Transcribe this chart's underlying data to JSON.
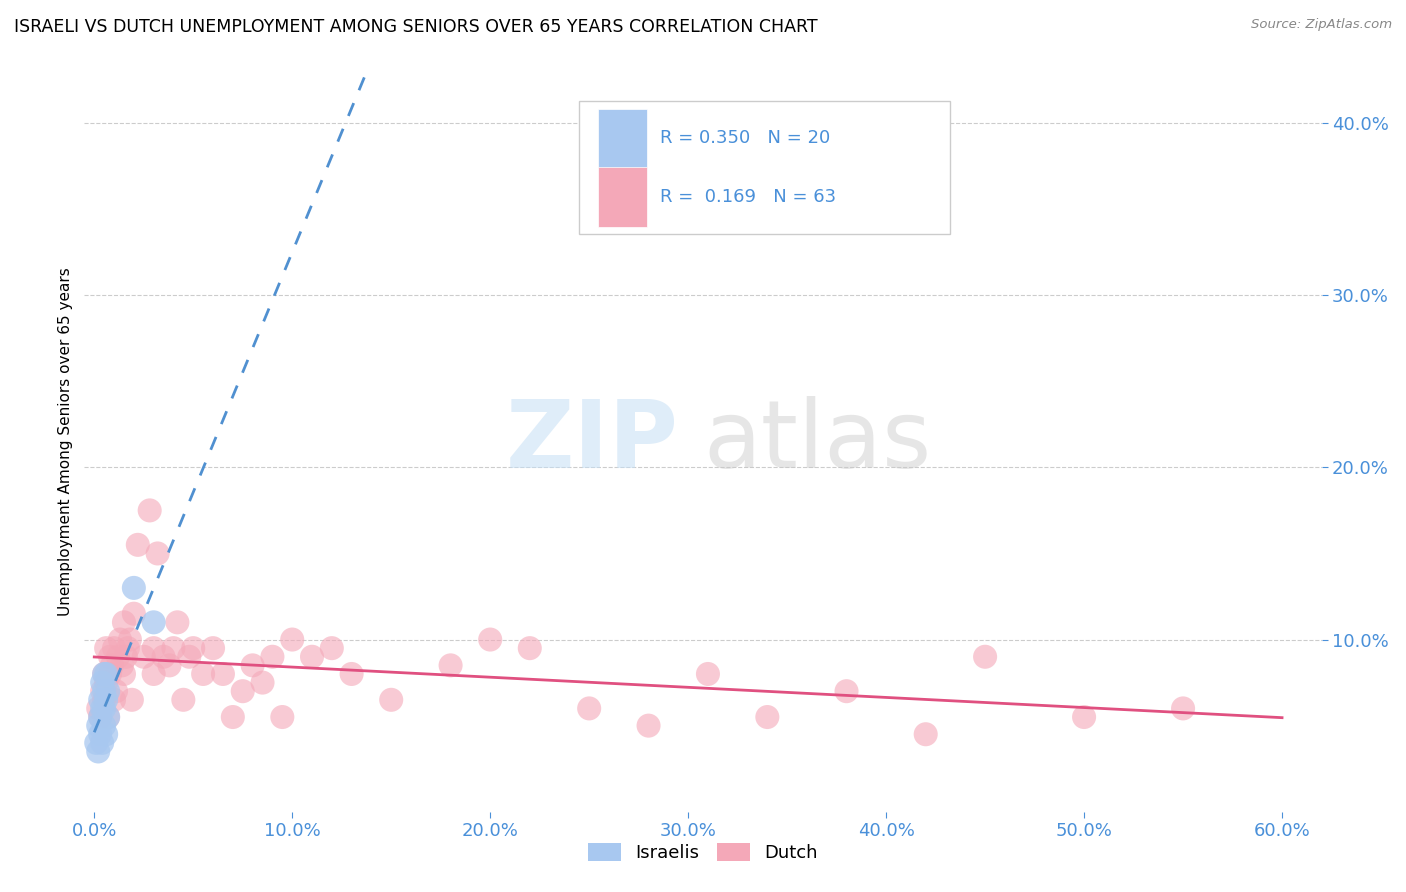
{
  "title": "ISRAELI VS DUTCH UNEMPLOYMENT AMONG SENIORS OVER 65 YEARS CORRELATION CHART",
  "source": "Source: ZipAtlas.com",
  "ylabel": "Unemployment Among Seniors over 65 years",
  "israelis_R": 0.35,
  "israelis_N": 20,
  "dutch_R": 0.169,
  "dutch_N": 63,
  "israelis_color": "#a8c8f0",
  "dutch_color": "#f4a8b8",
  "trendline_israeli_color": "#5090d0",
  "trendline_dutch_color": "#e05080",
  "background_color": "#ffffff",
  "grid_color": "#cccccc",
  "israelis_x": [
    0.001,
    0.002,
    0.002,
    0.003,
    0.003,
    0.003,
    0.004,
    0.004,
    0.004,
    0.005,
    0.005,
    0.005,
    0.005,
    0.006,
    0.006,
    0.006,
    0.007,
    0.007,
    0.02,
    0.03
  ],
  "israelis_y": [
    0.04,
    0.035,
    0.05,
    0.045,
    0.055,
    0.065,
    0.04,
    0.06,
    0.075,
    0.05,
    0.06,
    0.07,
    0.08,
    0.045,
    0.065,
    0.08,
    0.055,
    0.07,
    0.13,
    0.11
  ],
  "dutch_x": [
    0.002,
    0.003,
    0.004,
    0.005,
    0.005,
    0.006,
    0.006,
    0.007,
    0.008,
    0.008,
    0.009,
    0.01,
    0.01,
    0.011,
    0.012,
    0.013,
    0.014,
    0.015,
    0.015,
    0.016,
    0.017,
    0.018,
    0.019,
    0.02,
    0.022,
    0.025,
    0.028,
    0.03,
    0.03,
    0.032,
    0.035,
    0.038,
    0.04,
    0.042,
    0.045,
    0.048,
    0.05,
    0.055,
    0.06,
    0.065,
    0.07,
    0.075,
    0.08,
    0.085,
    0.09,
    0.095,
    0.1,
    0.11,
    0.12,
    0.13,
    0.15,
    0.18,
    0.2,
    0.22,
    0.25,
    0.28,
    0.31,
    0.34,
    0.38,
    0.42,
    0.45,
    0.5,
    0.55
  ],
  "dutch_y": [
    0.06,
    0.055,
    0.07,
    0.065,
    0.08,
    0.075,
    0.095,
    0.055,
    0.08,
    0.09,
    0.085,
    0.065,
    0.095,
    0.07,
    0.09,
    0.1,
    0.085,
    0.08,
    0.11,
    0.09,
    0.095,
    0.1,
    0.065,
    0.115,
    0.155,
    0.09,
    0.175,
    0.08,
    0.095,
    0.15,
    0.09,
    0.085,
    0.095,
    0.11,
    0.065,
    0.09,
    0.095,
    0.08,
    0.095,
    0.08,
    0.055,
    0.07,
    0.085,
    0.075,
    0.09,
    0.055,
    0.1,
    0.09,
    0.095,
    0.08,
    0.065,
    0.085,
    0.1,
    0.095,
    0.06,
    0.05,
    0.08,
    0.055,
    0.07,
    0.045,
    0.09,
    0.055,
    0.06
  ],
  "x_ticks": [
    0.0,
    0.1,
    0.2,
    0.3,
    0.4,
    0.5,
    0.6
  ],
  "y_ticks_right": [
    0.1,
    0.2,
    0.3,
    0.4
  ],
  "xlim": [
    -0.005,
    0.62
  ],
  "ylim": [
    0.0,
    0.43
  ]
}
